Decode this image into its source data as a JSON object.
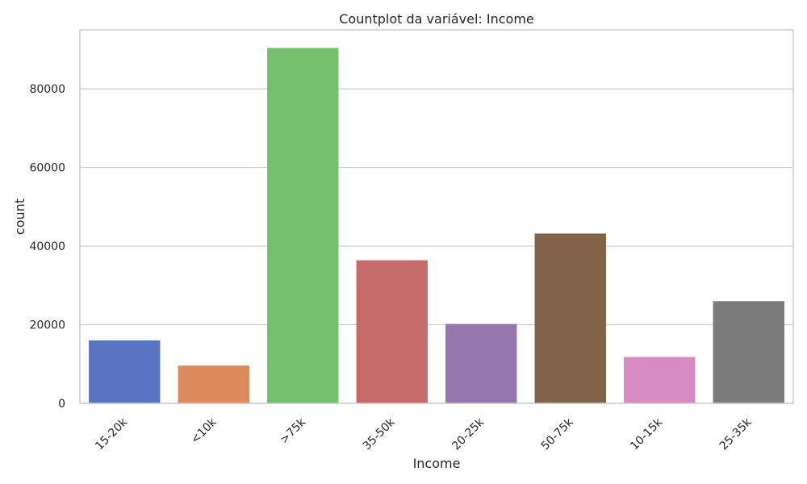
{
  "chart_data": {
    "type": "bar",
    "title": "Countplot da variável: Income",
    "xlabel": "Income",
    "ylabel": "count",
    "categories": [
      "15-20k",
      "<10k",
      ">75k",
      "35-50k",
      "20-25k",
      "50-75k",
      "10-15k",
      "25-35k"
    ],
    "values": [
      16000,
      9600,
      90400,
      36400,
      20200,
      43200,
      11800,
      26000
    ],
    "ylim": [
      0,
      95000
    ],
    "yticks": [
      0,
      20000,
      40000,
      60000,
      80000
    ],
    "ytick_labels": [
      "0",
      "20000",
      "40000",
      "60000",
      "80000"
    ],
    "grid": "horizontal",
    "colors": [
      "#5975c1",
      "#dc8a5e",
      "#75c06f",
      "#c66c6a",
      "#9577ad",
      "#82634a",
      "#d68bc2",
      "#7b7b7b"
    ]
  }
}
